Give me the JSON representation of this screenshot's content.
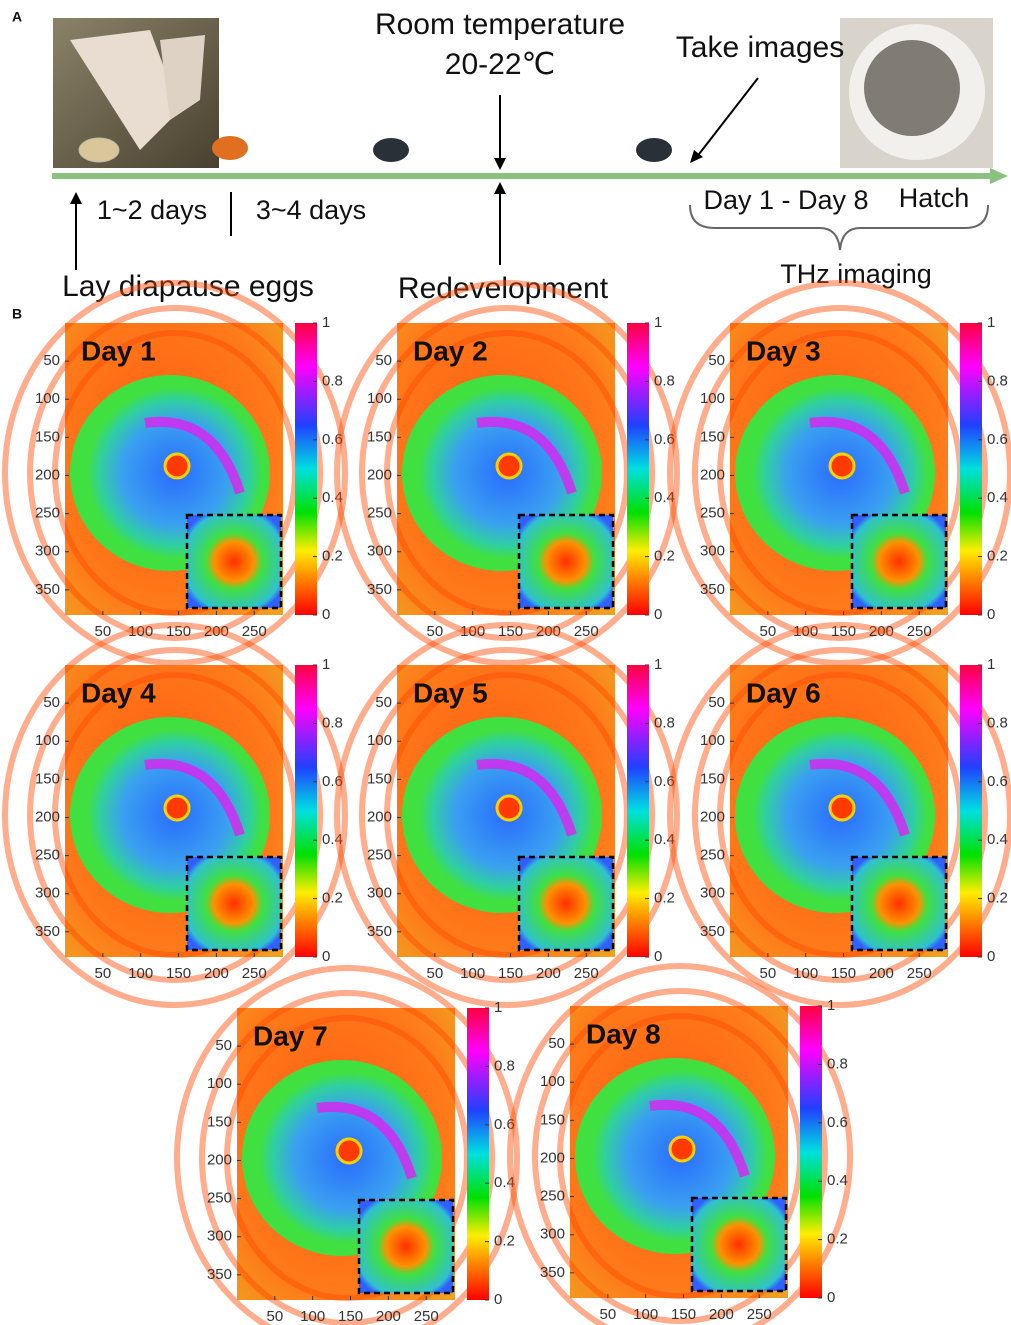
{
  "panel_a": {
    "label": "A",
    "room_temperature": "Room temperature",
    "temperature_range": "20-22℃",
    "take_images": "Take images",
    "days_1_2": "1~2 days",
    "days_3_4": "3~4 days",
    "day_range": "Day 1 - Day 8",
    "hatch": "Hatch",
    "lay_eggs": "Lay diapause eggs",
    "redevelopment": "Redevelopment",
    "thz_imaging": "THz imaging"
  },
  "panel_b": {
    "label": "B",
    "xlim": [
      0,
      288
    ],
    "ylim": [
      0,
      383
    ],
    "xticks": [
      50,
      100,
      150,
      200,
      250
    ],
    "yticks": [
      50,
      100,
      150,
      200,
      250,
      300,
      350
    ],
    "colorbar_lim": [
      0,
      1
    ],
    "colorbar_ticks": [
      0,
      0.2,
      0.4,
      0.6,
      0.8,
      1
    ],
    "panels": [
      {
        "title": "Day 1"
      },
      {
        "title": "Day 2"
      },
      {
        "title": "Day 3"
      },
      {
        "title": "Day 4"
      },
      {
        "title": "Day 5"
      },
      {
        "title": "Day 6"
      },
      {
        "title": "Day 7"
      },
      {
        "title": "Day 8"
      }
    ]
  }
}
